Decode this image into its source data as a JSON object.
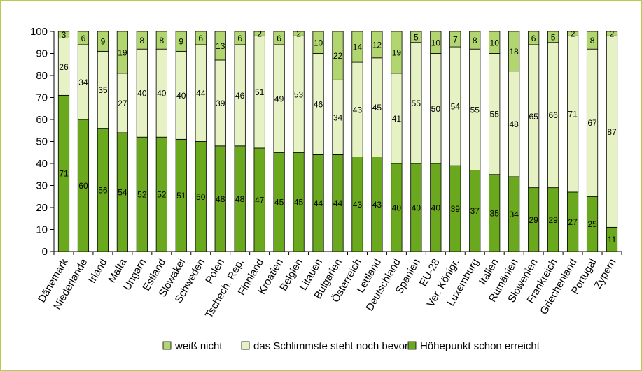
{
  "chart_data": {
    "type": "bar",
    "stacked": true,
    "ylim": [
      0,
      100
    ],
    "yticks": [
      0,
      10,
      20,
      30,
      40,
      50,
      60,
      70,
      80,
      90,
      100
    ],
    "legend_position": "bottom",
    "categories": [
      "Dänemark",
      "Niederlande",
      "Irland",
      "Malta",
      "Ungarn",
      "Estland",
      "Slowakei",
      "Schweden",
      "Polen",
      "Tschech. Rep.",
      "Finnland",
      "Kroatien",
      "Belgien",
      "Litauen",
      "Bulgarien",
      "Österreich",
      "Lettland",
      "Deutschland",
      "Spanien",
      "EU-28",
      "Ver. Königr.",
      "Luxemburg",
      "Italien",
      "Rumänien",
      "Slowenien",
      "Frankreich",
      "Griechenland",
      "Portugal",
      "Zypern"
    ],
    "series": [
      {
        "name": "Höhepunkt schon erreicht",
        "color": "#6aa81e",
        "values": [
          71,
          60,
          56,
          54,
          52,
          52,
          51,
          50,
          48,
          48,
          47,
          45,
          45,
          44,
          44,
          43,
          43,
          40,
          40,
          40,
          39,
          37,
          35,
          34,
          29,
          29,
          27,
          25,
          11
        ]
      },
      {
        "name": "das Schlimmste steht noch bevor",
        "color": "#e6f2c4",
        "values": [
          26,
          34,
          35,
          27,
          40,
          40,
          40,
          44,
          39,
          46,
          51,
          49,
          53,
          46,
          34,
          43,
          45,
          41,
          55,
          50,
          54,
          55,
          55,
          48,
          65,
          66,
          71,
          67,
          87
        ]
      },
      {
        "name": "weiß nicht",
        "color": "#b2d66f",
        "values": [
          3,
          6,
          9,
          19,
          8,
          8,
          9,
          6,
          13,
          6,
          2,
          6,
          2,
          10,
          22,
          14,
          12,
          19,
          5,
          10,
          7,
          8,
          10,
          18,
          6,
          5,
          2,
          8,
          2
        ]
      }
    ],
    "legend_order": [
      "weiß nicht",
      "das Schlimmste steht noch bevor",
      "Höhepunkt schon erreicht"
    ]
  }
}
